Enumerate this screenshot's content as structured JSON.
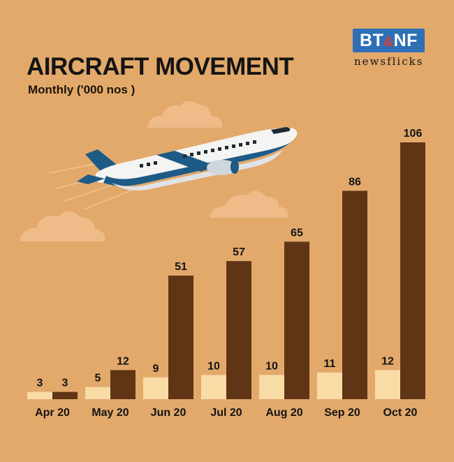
{
  "header": {
    "title": "AIRCRAFT MOVEMENT",
    "subtitle": "Monthly ('000 nos )"
  },
  "logo": {
    "badge_left": "BT",
    "badge_amp": "&",
    "badge_right": "NF",
    "tagline": "newsflicks"
  },
  "colors": {
    "background": "#e2a96b",
    "series_light": "#f9dba6",
    "series_dark": "#5f3515",
    "cloud": "#eebb89"
  },
  "chart_data": {
    "type": "bar",
    "categories": [
      "Apr 20",
      "May 20",
      "Jun 20",
      "Jul 20",
      "Aug 20",
      "Sep 20",
      "Oct 20"
    ],
    "series": [
      {
        "values": [
          3,
          5,
          9,
          10,
          10,
          11,
          12
        ]
      },
      {
        "values": [
          3,
          12,
          51,
          57,
          65,
          86,
          106
        ]
      }
    ],
    "title": "AIRCRAFT MOVEMENT",
    "subtitle": "Monthly ('000 nos )",
    "ylim": [
      0,
      106
    ],
    "grid": false,
    "legend": "none"
  }
}
